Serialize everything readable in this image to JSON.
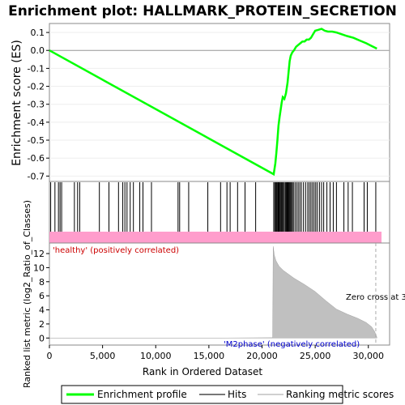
{
  "chart_data": {
    "type": "line",
    "title": "Enrichment plot: HALLMARK_PROTEIN_SECRETION",
    "top_panel": {
      "ylabel": "Enrichment score (ES)",
      "ylim": [
        -0.73,
        0.15
      ],
      "yticks": [
        0.1,
        0.0,
        -0.1,
        -0.2,
        -0.3,
        -0.4,
        -0.5,
        -0.6,
        -0.7
      ],
      "ytick_labels": [
        "0.1",
        "0.0",
        "-0.1",
        "-0.2",
        "-0.3",
        "-0.4",
        "-0.5",
        "-0.6",
        "-0.7"
      ],
      "series": [
        {
          "name": "Enrichment profile",
          "color": "#00ff00",
          "x": [
            0,
            21100,
            21250,
            21350,
            21450,
            21550,
            21650,
            21750,
            21850,
            21950,
            22100,
            22250,
            22400,
            22500,
            22600,
            22700,
            22850,
            23000,
            23200,
            23400,
            23600,
            23800,
            24000,
            24200,
            24400,
            24600,
            24800,
            25000,
            25300,
            25600,
            25900,
            26200,
            26600,
            27000,
            27500,
            28000,
            28600,
            29200,
            29800,
            30300,
            30800
          ],
          "y": [
            0.0,
            -0.69,
            -0.63,
            -0.57,
            -0.5,
            -0.42,
            -0.37,
            -0.33,
            -0.29,
            -0.26,
            -0.27,
            -0.24,
            -0.18,
            -0.12,
            -0.06,
            -0.03,
            -0.01,
            0.0,
            0.02,
            0.03,
            0.04,
            0.05,
            0.05,
            0.06,
            0.06,
            0.07,
            0.09,
            0.11,
            0.115,
            0.12,
            0.11,
            0.105,
            0.105,
            0.1,
            0.09,
            0.08,
            0.07,
            0.055,
            0.04,
            0.025,
            0.01
          ]
        }
      ]
    },
    "hits": {
      "name": "Hits",
      "color": "#000000",
      "positions": [
        120,
        520,
        850,
        1000,
        1150,
        2350,
        2650,
        2850,
        4700,
        5600,
        6500,
        6900,
        7100,
        7300,
        7600,
        7900,
        8500,
        8800,
        9600,
        12100,
        12250,
        13100,
        14900,
        16100,
        16700,
        17000,
        17700,
        18400,
        19400,
        21100,
        21200,
        21280,
        21350,
        21420,
        21500,
        21560,
        21620,
        21700,
        21780,
        21850,
        21930,
        22000,
        22100,
        22200,
        22280,
        22360,
        22440,
        22520,
        22600,
        22680,
        22760,
        22850,
        22950,
        23100,
        23250,
        23400,
        23550,
        23700,
        23900,
        24100,
        24300,
        24450,
        24600,
        24750,
        24900,
        25050,
        25200,
        25400,
        25600,
        25800,
        26100,
        26400,
        26700,
        27000,
        27700,
        28100,
        28500,
        29600,
        29900,
        30700
      ]
    },
    "bottom_panel": {
      "ylabel": "Ranked list metric (log2_Ratio_of_Classes)",
      "ylim": [
        -1,
        13.5
      ],
      "yticks": [
        0,
        2,
        4,
        6,
        8,
        10,
        12
      ],
      "ytick_labels": [
        "0",
        "2",
        "4",
        "6",
        "8",
        "10",
        "12"
      ],
      "series": [
        {
          "name": "Ranking metric scores",
          "color": "#c0c0c0",
          "x": [
            0,
            16000,
            21000,
            21050,
            21150,
            21300,
            21600,
            22000,
            23000,
            24000,
            25000,
            26000,
            27000,
            28000,
            29000,
            29800,
            30300,
            30600,
            30800
          ],
          "y": [
            0.0,
            0.0,
            0.05,
            13.0,
            11.8,
            11.0,
            10.2,
            9.6,
            8.5,
            7.6,
            6.6,
            5.3,
            4.1,
            3.4,
            2.8,
            2.2,
            1.6,
            0.9,
            0.1
          ]
        }
      ],
      "annotations": {
        "positive_label": "'healthy' (positively correlated)",
        "negative_label": "'M2phase' (negatively correlated)",
        "zero_cross_label": "Zero cross at 3",
        "zero_cross_x": 30700
      }
    },
    "xaxis": {
      "xlabel": "Rank in Ordered Dataset",
      "xlim": [
        0,
        32000
      ],
      "xticks": [
        0,
        5000,
        10000,
        15000,
        20000,
        25000,
        30000
      ],
      "xtick_labels": [
        "0",
        "5,000",
        "10,000",
        "15,000",
        "20,000",
        "25,000",
        "30,000"
      ]
    },
    "legend": {
      "placement": "bottom",
      "entries": [
        "Enrichment profile",
        "Hits",
        "Ranking metric scores"
      ],
      "colors": [
        "#00ff00",
        "#777777",
        "#d0d0d0"
      ]
    },
    "colors": {
      "profile": "#00ff00",
      "hits": "#000000",
      "positive_band": "#ff9dcc",
      "metric_fill": "#c0c0c0",
      "positive_label": "#cc0000",
      "negative_label": "#0000cc"
    }
  }
}
